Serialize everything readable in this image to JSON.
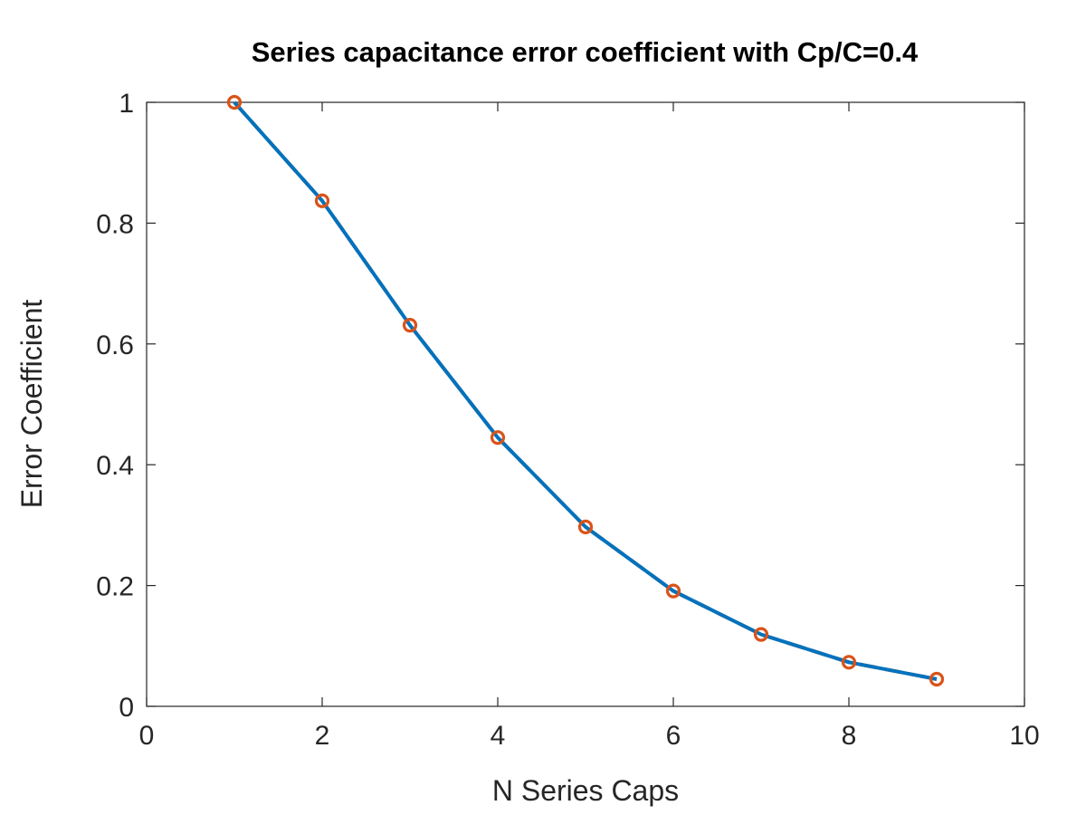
{
  "chart_data": {
    "type": "line",
    "title": "Series capacitance error coefficient with Cp/C=0.4",
    "xlabel": "N Series Caps",
    "ylabel": "Error Coefficient",
    "xlim": [
      0,
      10
    ],
    "ylim": [
      0,
      1
    ],
    "xticks": [
      0,
      2,
      4,
      6,
      8,
      10
    ],
    "xtick_labels": [
      "0",
      "2",
      "4",
      "6",
      "8",
      "10"
    ],
    "yticks": [
      0,
      0.2,
      0.4,
      0.6,
      0.8,
      1
    ],
    "ytick_labels": [
      "0",
      "0.2",
      "0.4",
      "0.6",
      "0.8",
      "1"
    ],
    "grid": false,
    "x": [
      1,
      2,
      3,
      4,
      5,
      6,
      7,
      8,
      9
    ],
    "series": [
      {
        "values": [
          1.0,
          0.837,
          0.631,
          0.445,
          0.297,
          0.191,
          0.119,
          0.073,
          0.045
        ],
        "color": "#0072bd",
        "style": "solid line"
      },
      {
        "values": [
          1.0,
          0.837,
          0.631,
          0.445,
          0.297,
          0.191,
          0.119,
          0.073,
          0.045
        ],
        "color": "#d95319",
        "style": "dashed line with circle markers"
      }
    ]
  }
}
